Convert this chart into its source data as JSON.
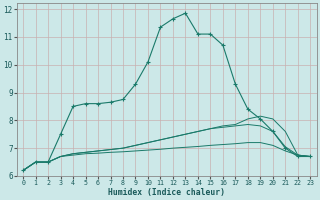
{
  "xlabel": "Humidex (Indice chaleur)",
  "bg_color": "#cce8e8",
  "grid_color_h": "#c8b0b0",
  "grid_color_v": "#c8b0b0",
  "line_color": "#1a7a6a",
  "xlim": [
    -0.5,
    23.5
  ],
  "ylim": [
    6,
    12.2
  ],
  "x": [
    0,
    1,
    2,
    3,
    4,
    5,
    6,
    7,
    8,
    9,
    10,
    11,
    12,
    13,
    14,
    15,
    16,
    17,
    18,
    19,
    20,
    21,
    22,
    23
  ],
  "line1": [
    6.2,
    6.5,
    6.5,
    7.5,
    8.5,
    8.6,
    8.6,
    8.65,
    8.75,
    9.3,
    10.1,
    11.35,
    11.65,
    11.85,
    11.1,
    11.1,
    10.7,
    9.3,
    8.4,
    8.05,
    7.6,
    7.0,
    6.7,
    6.7
  ],
  "line2": [
    6.2,
    6.5,
    6.5,
    6.7,
    6.8,
    6.85,
    6.9,
    6.95,
    7.0,
    7.1,
    7.2,
    7.3,
    7.4,
    7.5,
    7.6,
    7.7,
    7.8,
    7.85,
    8.05,
    8.15,
    8.05,
    7.6,
    6.75,
    6.7
  ],
  "line3": [
    6.2,
    6.5,
    6.5,
    6.7,
    6.8,
    6.85,
    6.9,
    6.95,
    7.0,
    7.1,
    7.2,
    7.3,
    7.4,
    7.5,
    7.6,
    7.7,
    7.75,
    7.8,
    7.85,
    7.8,
    7.6,
    7.05,
    6.75,
    6.7
  ],
  "line4": [
    6.2,
    6.5,
    6.5,
    6.7,
    6.75,
    6.8,
    6.82,
    6.85,
    6.87,
    6.9,
    6.93,
    6.96,
    7.0,
    7.03,
    7.06,
    7.1,
    7.13,
    7.16,
    7.2,
    7.2,
    7.1,
    6.9,
    6.75,
    6.7
  ],
  "yticks": [
    6,
    7,
    8,
    9,
    10,
    11,
    12
  ],
  "xticks": [
    0,
    1,
    2,
    3,
    4,
    5,
    6,
    7,
    8,
    9,
    10,
    11,
    12,
    13,
    14,
    15,
    16,
    17,
    18,
    19,
    20,
    21,
    22,
    23
  ]
}
